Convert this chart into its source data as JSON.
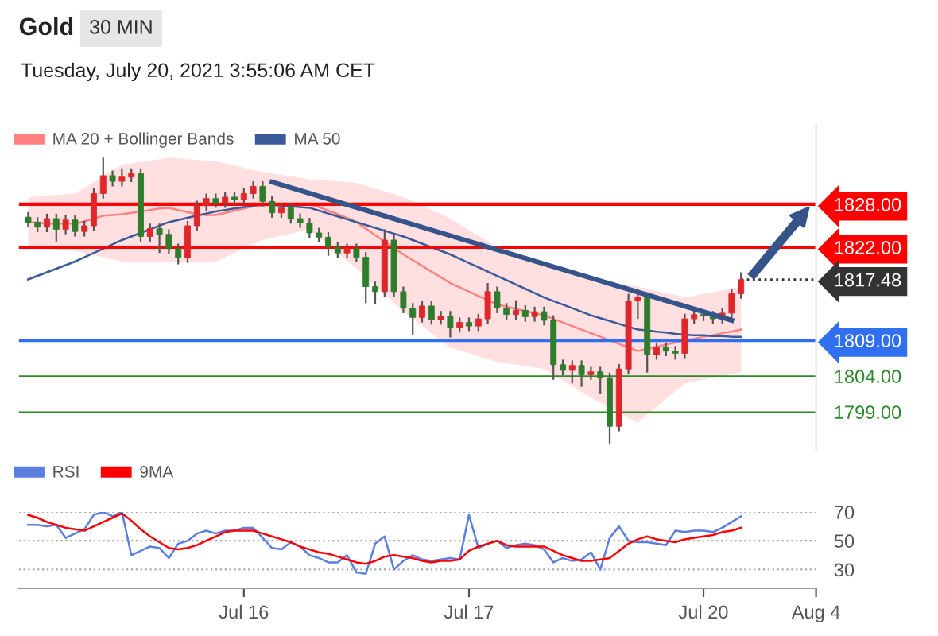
{
  "chart_data": [
    {
      "type": "candlestick",
      "title": "Gold",
      "subtitle": "30 MIN",
      "annotations": [
        "Tuesday, July 20, 2021 3:55:06 AM CET"
      ],
      "categories": [
        null,
        null,
        null,
        null,
        null,
        null,
        null,
        null,
        null,
        null,
        null,
        null,
        null,
        null,
        null,
        null,
        null,
        null,
        null,
        null,
        null,
        null,
        null,
        null,
        null,
        null,
        null,
        null,
        null,
        null,
        null,
        null,
        null,
        null,
        null,
        null,
        null,
        null,
        null,
        null,
        null,
        null,
        null,
        null,
        null,
        null,
        null,
        null,
        null,
        null,
        null,
        null,
        null,
        null,
        null,
        null,
        null,
        null,
        null,
        null,
        null,
        null,
        null,
        null,
        null,
        null,
        null,
        null,
        null,
        null,
        null,
        null,
        null,
        null,
        null,
        null,
        null,
        null,
        null,
        null,
        null,
        null,
        null,
        null,
        null
      ],
      "ohlc": [
        [
          1826.2,
          1826.9,
          1824.8,
          1825.5
        ],
        [
          1825.5,
          1826.2,
          1824.1,
          1824.8
        ],
        [
          1824.8,
          1826.7,
          1824.1,
          1826.0
        ],
        [
          1826.0,
          1826.7,
          1822.8,
          1824.5
        ],
        [
          1824.5,
          1826.5,
          1823.8,
          1825.8
        ],
        [
          1825.8,
          1826.5,
          1823.5,
          1824.2
        ],
        [
          1824.2,
          1825.7,
          1823.5,
          1825.0
        ],
        [
          1825.0,
          1830.2,
          1824.3,
          1829.5
        ],
        [
          1829.5,
          1834.5,
          1828.8,
          1832.0
        ],
        [
          1832.0,
          1832.7,
          1830.5,
          1831.2
        ],
        [
          1831.2,
          1833.0,
          1830.5,
          1831.8
        ],
        [
          1831.8,
          1833.0,
          1831.1,
          1832.3
        ],
        [
          1832.3,
          1833.0,
          1822.8,
          1823.5
        ],
        [
          1823.5,
          1825.3,
          1822.8,
          1824.6
        ],
        [
          1824.6,
          1825.3,
          1821.2,
          1823.8
        ],
        [
          1823.8,
          1824.5,
          1821.1,
          1821.8
        ],
        [
          1821.8,
          1822.5,
          1819.6,
          1820.5
        ],
        [
          1820.5,
          1825.7,
          1819.8,
          1825.0
        ],
        [
          1825.0,
          1828.5,
          1824.3,
          1827.8
        ],
        [
          1827.8,
          1829.5,
          1827.1,
          1828.8
        ],
        [
          1828.8,
          1829.5,
          1827.5,
          1828.2
        ],
        [
          1828.2,
          1829.7,
          1827.5,
          1829.0
        ],
        [
          1829.0,
          1829.7,
          1827.9,
          1828.6
        ],
        [
          1828.6,
          1830.2,
          1827.9,
          1829.5
        ],
        [
          1829.5,
          1831.2,
          1828.8,
          1830.5
        ],
        [
          1830.5,
          1831.2,
          1827.7,
          1828.4
        ],
        [
          1828.4,
          1829.1,
          1826.1,
          1826.8
        ],
        [
          1826.8,
          1828.2,
          1826.1,
          1827.5
        ],
        [
          1827.5,
          1828.2,
          1825.3,
          1826.0
        ],
        [
          1826.0,
          1826.7,
          1824.7,
          1825.4
        ],
        [
          1825.4,
          1826.1,
          1823.3,
          1824.0
        ],
        [
          1824.0,
          1824.7,
          1822.7,
          1823.4
        ],
        [
          1823.4,
          1824.1,
          1820.8,
          1822.0
        ],
        [
          1822.0,
          1822.7,
          1820.5,
          1821.2
        ],
        [
          1821.2,
          1822.5,
          1820.5,
          1821.8
        ],
        [
          1821.8,
          1822.5,
          1819.9,
          1820.6
        ],
        [
          1820.6,
          1821.3,
          1814.2,
          1816.5
        ],
        [
          1816.5,
          1817.2,
          1814.0,
          1815.8
        ],
        [
          1815.8,
          1824.5,
          1815.1,
          1823.0
        ],
        [
          1823.0,
          1823.7,
          1815.1,
          1815.8
        ],
        [
          1815.8,
          1816.5,
          1812.8,
          1813.5
        ],
        [
          1813.5,
          1814.2,
          1809.8,
          1812.2
        ],
        [
          1812.2,
          1814.5,
          1811.5,
          1813.8
        ],
        [
          1813.8,
          1814.5,
          1811.2,
          1811.9
        ],
        [
          1811.9,
          1813.1,
          1811.2,
          1812.4
        ],
        [
          1812.4,
          1813.1,
          1809.4,
          1810.8
        ],
        [
          1810.8,
          1812.2,
          1810.1,
          1811.5
        ],
        [
          1811.5,
          1812.2,
          1810.3,
          1811.0
        ],
        [
          1811.0,
          1812.7,
          1810.3,
          1812.0
        ],
        [
          1812.0,
          1817.0,
          1811.3,
          1815.8
        ],
        [
          1815.8,
          1816.5,
          1812.8,
          1813.5
        ],
        [
          1813.5,
          1814.2,
          1811.9,
          1812.6
        ],
        [
          1812.6,
          1814.6,
          1811.9,
          1813.2
        ],
        [
          1813.2,
          1813.9,
          1811.6,
          1812.3
        ],
        [
          1812.3,
          1813.7,
          1811.6,
          1813.0
        ],
        [
          1813.0,
          1813.7,
          1811.1,
          1811.8
        ],
        [
          1811.8,
          1812.5,
          1803.5,
          1805.6
        ],
        [
          1805.6,
          1806.3,
          1804.1,
          1804.8
        ],
        [
          1804.8,
          1806.2,
          1803.0,
          1805.5
        ],
        [
          1805.5,
          1806.2,
          1802.5,
          1804.2
        ],
        [
          1804.2,
          1805.3,
          1803.5,
          1804.6
        ],
        [
          1804.6,
          1805.3,
          1801.5,
          1803.8
        ],
        [
          1803.8,
          1804.5,
          1794.6,
          1797.0
        ],
        [
          1797.0,
          1805.7,
          1796.3,
          1805.0
        ],
        [
          1805.0,
          1815.5,
          1804.3,
          1814.5
        ],
        [
          1814.5,
          1815.7,
          1812.0,
          1815.0
        ],
        [
          1815.0,
          1815.7,
          1804.5,
          1807.0
        ],
        [
          1807.0,
          1808.7,
          1806.3,
          1808.0
        ],
        [
          1808.0,
          1808.7,
          1806.8,
          1807.5
        ],
        [
          1807.5,
          1808.2,
          1806.3,
          1807.2
        ],
        [
          1807.2,
          1812.7,
          1806.5,
          1812.0
        ],
        [
          1812.0,
          1813.3,
          1811.3,
          1812.6
        ],
        [
          1812.6,
          1813.3,
          1811.7,
          1812.4
        ],
        [
          1812.4,
          1813.1,
          1811.3,
          1812.0
        ],
        [
          1812.0,
          1813.5,
          1811.3,
          1812.8
        ],
        [
          1812.8,
          1816.2,
          1812.1,
          1815.5
        ],
        [
          1815.5,
          1818.5,
          1814.8,
          1817.48
        ],
        null,
        null,
        null,
        null,
        null,
        null,
        null,
        null
      ],
      "colors": [
        "#2d7d2d",
        "#2d7d2d",
        "#e0262b",
        "#2d7d2d",
        "#e0262b",
        "#2d7d2d",
        "#e0262b",
        "#e0262b",
        "#e0262b",
        "#2d7d2d",
        "#e0262b",
        "#e0262b",
        "#2d7d2d",
        "#e0262b",
        "#2d7d2d",
        "#2d7d2d",
        "#2d7d2d",
        "#e0262b",
        "#e0262b",
        "#e0262b",
        "#2d7d2d",
        "#e0262b",
        "#2d7d2d",
        "#e0262b",
        "#e0262b",
        "#2d7d2d",
        "#2d7d2d",
        "#e0262b",
        "#2d7d2d",
        "#2d7d2d",
        "#2d7d2d",
        "#2d7d2d",
        "#2d7d2d",
        "#2d7d2d",
        "#e0262b",
        "#2d7d2d",
        "#2d7d2d",
        "#2d7d2d",
        "#e0262b",
        "#2d7d2d",
        "#2d7d2d",
        "#2d7d2d",
        "#e0262b",
        "#2d7d2d",
        "#e0262b",
        "#2d7d2d",
        "#e0262b",
        "#2d7d2d",
        "#e0262b",
        "#e0262b",
        "#2d7d2d",
        "#2d7d2d",
        "#e0262b",
        "#2d7d2d",
        "#e0262b",
        "#2d7d2d",
        "#2d7d2d",
        "#2d7d2d",
        "#e0262b",
        "#2d7d2d",
        "#e0262b",
        "#2d7d2d",
        "#2d7d2d",
        "#e0262b",
        "#e0262b",
        "#e0262b",
        "#2d7d2d",
        "#e0262b",
        "#2d7d2d",
        "#2d7d2d",
        "#e0262b",
        "#e0262b",
        "#2d7d2d",
        "#2d7d2d",
        "#e0262b",
        "#e0262b",
        "#e0262b",
        null,
        null,
        null,
        null,
        null,
        null,
        null,
        null
      ],
      "series": [
        {
          "type": "line",
          "name": "MA 20 + Bollinger Bands",
          "color": "#ff8080",
          "values": [
            1825.5,
            1825.4,
            1825.3,
            1825.3,
            1825.3,
            1825.3,
            1825.6,
            1826.0,
            1826.4,
            1826.5,
            1826.6,
            1826.8,
            1827.0,
            1827.2,
            1827.4,
            1827.5,
            1827.2,
            1826.9,
            1826.6,
            1826.5,
            1826.5,
            1826.8,
            1827.1,
            1827.4,
            1827.7,
            1827.8,
            1828.0,
            1828.0,
            1828.0,
            1828.0,
            1828.0,
            1827.6,
            1827.1,
            1826.6,
            1826.1,
            1825.5,
            1824.6,
            1823.7,
            1822.8,
            1821.9,
            1821.0,
            1820.2,
            1819.4,
            1818.6,
            1817.8,
            1817.0,
            1816.4,
            1815.8,
            1815.2,
            1814.6,
            1814.0,
            1813.7,
            1813.4,
            1813.1,
            1812.8,
            1812.5,
            1812.0,
            1811.5,
            1811.0,
            1810.5,
            1810.0,
            1809.5,
            1809.0,
            1808.5,
            1808.0,
            1807.5,
            1807.8,
            1808.1,
            1808.4,
            1808.7,
            1809.0,
            1809.2,
            1809.5,
            1809.7,
            1810.0,
            1810.2,
            1810.5,
            null,
            null,
            null,
            null,
            null,
            null,
            null,
            null
          ],
          "upper": [
            1829,
            1829.1,
            1829.2,
            1829.3,
            1829.4,
            1829.5,
            1830.3,
            1831.1,
            1831.9,
            1832.7,
            1833.5,
            1833.7,
            1833.9,
            1834.1,
            1834.3,
            1834.5,
            1834.4,
            1834.3,
            1834.2,
            1834.1,
            1834,
            1833.7,
            1833.4,
            1833.1,
            1832.8,
            1832.5,
            1832.3,
            1832.1,
            1831.9,
            1831.7,
            1831.5,
            1831.4,
            1831.3,
            1831.2,
            1831.1,
            1831,
            1830.6,
            1830.2,
            1829.8,
            1829.4,
            1829,
            1828.4,
            1827.8,
            1827.2,
            1826.6,
            1826,
            1825.2,
            1824.4,
            1823.6,
            1822.8,
            1822,
            1821.6,
            1821.2,
            1820.8,
            1820.4,
            1820,
            1819.5,
            1819,
            1818.5,
            1818,
            1817.5,
            1817.3,
            1817.1,
            1816.9,
            1816.7,
            1816.5,
            1816.2,
            1815.9,
            1815.6,
            1815.3,
            1815,
            1815.2,
            1815.5,
            1815.7,
            1816,
            1816.2,
            1816.5,
            null,
            null,
            null,
            null,
            null,
            null,
            null,
            null
          ],
          "lower": [
            1822,
            1821.9,
            1821.8,
            1821.7,
            1821.6,
            1821.5,
            1821.2,
            1820.9,
            1820.6,
            1820.3,
            1820,
            1820,
            1820,
            1820,
            1820,
            1820,
            1820,
            1820,
            1820,
            1820,
            1820,
            1820.6,
            1821.2,
            1821.8,
            1822.4,
            1823,
            1823.3,
            1823.6,
            1823.9,
            1824.2,
            1824.5,
            1823.4,
            1822.3,
            1821.2,
            1820.1,
            1819,
            1817.8,
            1816.6,
            1815.4,
            1814.2,
            1813,
            1812,
            1811,
            1810,
            1809,
            1808,
            1807.6,
            1807.2,
            1806.8,
            1806.4,
            1806,
            1805.8,
            1805.6,
            1805.4,
            1805.2,
            1805,
            1804.2,
            1803.4,
            1802.6,
            1801.8,
            1801,
            1800.3,
            1799.6,
            1798.9,
            1798.2,
            1797.5,
            1798.6,
            1799.7,
            1800.8,
            1801.9,
            1803,
            1803.3,
            1803.5,
            1803.8,
            1804,
            1804.3,
            1804.5,
            null,
            null,
            null,
            null,
            null,
            null,
            null,
            null
          ]
        },
        {
          "type": "line",
          "name": "MA 50",
          "color": "#3a5a9a",
          "values": [
            1817.5,
            1818,
            1818.5,
            1819,
            1819.5,
            1820,
            1820.6,
            1821.2,
            1821.8,
            1822.4,
            1823,
            1823.5,
            1824,
            1824.5,
            1825,
            1825.5,
            1825.8,
            1826.1,
            1826.4,
            1826.7,
            1827,
            1827.2,
            1827.4,
            1827.6,
            1827.8,
            1828,
            1827.9,
            1827.8,
            1827.7,
            1827.6,
            1827.5,
            1827.1,
            1826.7,
            1826.3,
            1825.9,
            1825.5,
            1825.1,
            1824.7,
            1824.3,
            1823.9,
            1823.5,
            1823,
            1822.5,
            1822,
            1821.5,
            1821,
            1820.4,
            1819.8,
            1819.2,
            1818.6,
            1818,
            1817.4,
            1816.8,
            1816.2,
            1815.6,
            1815,
            1814.5,
            1814,
            1813.5,
            1813,
            1812.5,
            1812.1,
            1811.7,
            1811.3,
            1810.9,
            1810.5,
            1810.4,
            1810.2,
            1810.1,
            1809.9,
            1809.8,
            1809.7,
            1809.7,
            1809.6,
            1809.6,
            1809.5,
            1809.5,
            null,
            null,
            null,
            null,
            null,
            null,
            null,
            null
          ]
        },
        {
          "type": "line",
          "color": "#34548a",
          "values": [
            null,
            null,
            null,
            null,
            null,
            null,
            null,
            null,
            null,
            null,
            null,
            null,
            null,
            null,
            null,
            null,
            null,
            null,
            null,
            null,
            null,
            null,
            null,
            null,
            null,
            null,
            1831.1,
            null,
            null,
            null,
            null,
            null,
            null,
            null,
            null,
            null,
            null,
            null,
            null,
            null,
            null,
            null,
            null,
            null,
            null,
            null,
            null,
            null,
            null,
            null,
            null,
            null,
            null,
            null,
            null,
            null,
            null,
            null,
            null,
            null,
            null,
            null,
            null,
            null,
            null,
            null,
            null,
            null,
            null,
            null,
            null,
            null,
            null,
            null,
            null,
            1811.8,
            null,
            null,
            null,
            null,
            null,
            null,
            null,
            null,
            null
          ]
        }
      ],
      "ylim": [
        1793.7,
        1839.2
      ],
      "yticks": [
        {
          "value": 1828,
          "label": "1828.00"
        },
        {
          "value": 1822,
          "label": "1822.00"
        },
        {
          "value": 1817.48,
          "label": "1817.48"
        },
        {
          "value": 1809,
          "label": "1809.00"
        },
        {
          "value": 1804,
          "label": "1804.00"
        },
        {
          "value": 1799,
          "label": "1799.00"
        }
      ],
      "ref_lines": [
        {
          "axis": "y",
          "value": 1828,
          "color": "#ff0000",
          "line_style": "solid"
        },
        {
          "axis": "y",
          "value": 1822,
          "color": "#ff0000",
          "line_style": "solid"
        },
        {
          "axis": "y",
          "value": 1817.48,
          "color": "#333333",
          "line_style": "dotted"
        },
        {
          "axis": "y",
          "value": 1809,
          "color": "#2f6ff0",
          "line_style": "solid"
        },
        {
          "axis": "y",
          "value": 1804,
          "color": "#2a8a2a",
          "line_style": "solid"
        },
        {
          "axis": "y",
          "value": 1799,
          "color": "#2a8a2a",
          "line_style": "solid"
        }
      ],
      "legend": "top left",
      "grid": false
    },
    {
      "type": "line",
      "series": [
        {
          "name": "RSI",
          "color": "#5b7fe0",
          "values": [
            61,
            61,
            60,
            61,
            52,
            55,
            58,
            68,
            70,
            67,
            70,
            40,
            43,
            46,
            45,
            38,
            48,
            50,
            55,
            57,
            55,
            57,
            57,
            59,
            59,
            52,
            45,
            44,
            49,
            46,
            40,
            38,
            35,
            35,
            40,
            28,
            27,
            48,
            53,
            30,
            36,
            40,
            37,
            36,
            37,
            38,
            37,
            68,
            45,
            48,
            50,
            45,
            47,
            48,
            47,
            44,
            35,
            38,
            36,
            37,
            42,
            30,
            52,
            60,
            50,
            49,
            49,
            48,
            47,
            57,
            56,
            57,
            57,
            56,
            59,
            63,
            67,
            null,
            null,
            null,
            null,
            null,
            null,
            null,
            null
          ]
        },
        {
          "name": "9MA",
          "color": "#ff0000",
          "values": [
            68,
            66,
            63,
            61,
            59,
            58,
            57,
            60,
            63,
            66,
            69,
            64,
            58,
            53,
            49,
            45,
            44,
            45,
            47,
            50,
            53,
            56,
            57,
            57,
            57,
            55,
            53,
            51,
            49,
            46,
            44,
            42,
            41,
            39,
            37,
            35,
            34,
            36,
            39,
            40,
            39,
            38,
            36,
            35,
            36,
            36,
            37,
            43,
            46,
            48,
            50,
            47,
            46,
            46,
            46,
            46,
            43,
            40,
            38,
            36,
            36,
            37,
            38,
            43,
            48,
            51,
            53,
            51,
            50,
            49,
            51,
            52,
            53,
            54,
            56,
            57,
            59,
            null,
            null,
            null,
            null,
            null,
            null,
            null,
            null
          ]
        }
      ],
      "categories": [
        null,
        null,
        null,
        null,
        null,
        null,
        null,
        null,
        null,
        null,
        null,
        null,
        null,
        null,
        null,
        null,
        null,
        null,
        null,
        null,
        null,
        null,
        null,
        "Jul 16",
        null,
        null,
        null,
        null,
        null,
        null,
        null,
        null,
        null,
        null,
        null,
        null,
        null,
        null,
        null,
        null,
        null,
        null,
        null,
        null,
        null,
        null,
        null,
        "Jul 17",
        null,
        null,
        null,
        null,
        null,
        null,
        null,
        null,
        null,
        null,
        null,
        null,
        null,
        null,
        null,
        null,
        null,
        null,
        null,
        null,
        null,
        null,
        null,
        null,
        "Jul 20",
        null,
        null,
        null,
        null,
        null,
        null,
        null,
        null,
        null,
        null,
        null,
        "Aug 4"
      ],
      "ylim": [
        17,
        70
      ],
      "yticks": [
        30,
        50,
        70
      ],
      "grid": "y",
      "legend": "top left"
    }
  ]
}
